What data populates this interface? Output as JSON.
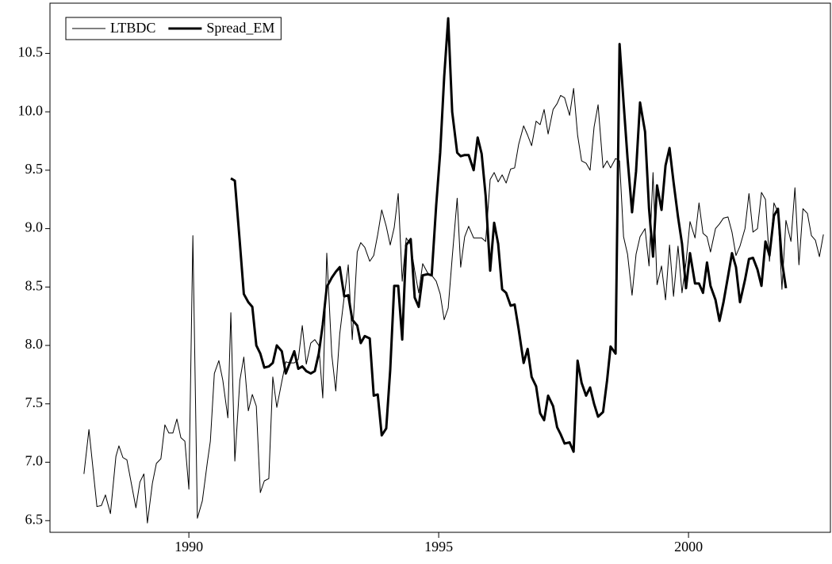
{
  "chart_data": {
    "type": "line",
    "x": [
      1987.9,
      1988.0,
      1988.16,
      1988.25,
      1988.33,
      1988.43,
      1988.54,
      1988.6,
      1988.68,
      1988.76,
      1988.94,
      1989.02,
      1989.1,
      1989.17,
      1989.27,
      1989.35,
      1989.44,
      1989.52,
      1989.6,
      1989.68,
      1989.76,
      1989.84,
      1989.92,
      1990.0,
      1990.08,
      1990.17,
      1990.27,
      1990.37,
      1990.43,
      1990.51,
      1990.6,
      1990.68,
      1990.78,
      1990.84,
      1990.92,
      1991.02,
      1991.1,
      1991.19,
      1991.27,
      1991.35,
      1991.43,
      1991.51,
      1991.6,
      1991.68,
      1991.76,
      1991.86,
      1991.94,
      1992.02,
      1992.11,
      1992.19,
      1992.27,
      1992.35,
      1992.44,
      1992.52,
      1992.6,
      1992.68,
      1992.76,
      1992.86,
      1992.94,
      1993.02,
      1993.11,
      1993.19,
      1993.27,
      1993.37,
      1993.44,
      1993.52,
      1993.62,
      1993.7,
      1993.78,
      1993.86,
      1993.95,
      1994.03,
      1994.11,
      1994.19,
      1994.27,
      1994.35,
      1994.44,
      1994.52,
      1994.6,
      1994.68,
      1994.78,
      1994.86,
      1994.95,
      1995.03,
      1995.11,
      1995.19,
      1995.27,
      1995.37,
      1995.44,
      1995.52,
      1995.6,
      1995.7,
      1995.78,
      1995.86,
      1995.94,
      1996.03,
      1996.11,
      1996.19,
      1996.27,
      1996.35,
      1996.44,
      1996.52,
      1996.6,
      1996.7,
      1996.78,
      1996.86,
      1996.95,
      1997.03,
      1997.11,
      1997.19,
      1997.29,
      1997.37,
      1997.44,
      1997.52,
      1997.62,
      1997.7,
      1997.78,
      1997.86,
      1997.95,
      1998.03,
      1998.11,
      1998.19,
      1998.29,
      1998.37,
      1998.44,
      1998.54,
      1998.62,
      1998.7,
      1998.78,
      1998.87,
      1998.95,
      1999.03,
      1999.13,
      1999.21,
      1999.29,
      1999.37,
      1999.46,
      1999.54,
      1999.62,
      1999.7,
      1999.79,
      1999.87,
      1999.95,
      2000.03,
      2000.13,
      2000.21,
      2000.29,
      2000.37,
      2000.44,
      2000.54,
      2000.62,
      2000.7,
      2000.79,
      2000.87,
      2000.95,
      2001.03,
      2001.13,
      2001.21,
      2001.29,
      2001.38,
      2001.46,
      2001.54,
      2001.62,
      2001.71,
      2001.79,
      2001.87,
      2001.95,
      2002.05,
      2002.13,
      2002.21,
      2002.29,
      2002.38,
      2002.46,
      2002.54,
      2002.62,
      2002.7
    ],
    "series": [
      {
        "name": "LTBDC",
        "color": "#000000",
        "width": 1,
        "values": [
          6.9,
          7.28,
          6.62,
          6.63,
          6.72,
          6.56,
          7.05,
          7.14,
          7.04,
          7.02,
          6.61,
          6.83,
          6.9,
          6.48,
          6.82,
          6.99,
          7.03,
          7.32,
          7.25,
          7.25,
          7.37,
          7.21,
          7.18,
          6.77,
          8.94,
          6.52,
          6.67,
          7.0,
          7.18,
          7.76,
          7.87,
          7.7,
          7.38,
          8.28,
          7.01,
          7.7,
          7.9,
          7.44,
          7.58,
          7.48,
          6.74,
          6.84,
          6.86,
          7.73,
          7.47,
          7.69,
          7.86,
          7.85,
          7.85,
          7.88,
          8.17,
          7.84,
          8.02,
          8.05,
          8.0,
          7.55,
          8.79,
          7.92,
          7.61,
          8.1,
          8.42,
          8.69,
          8.05,
          8.8,
          8.88,
          8.84,
          8.72,
          8.77,
          8.95,
          9.16,
          9.02,
          8.86,
          9.01,
          9.3,
          8.55,
          8.92,
          8.86,
          8.64,
          8.45,
          8.7,
          8.62,
          8.6,
          8.55,
          8.44,
          8.22,
          8.32,
          8.75,
          9.26,
          8.67,
          8.93,
          9.02,
          8.92,
          8.92,
          8.92,
          8.89,
          9.42,
          9.48,
          9.4,
          9.46,
          9.39,
          9.51,
          9.52,
          9.72,
          9.88,
          9.8,
          9.71,
          9.92,
          9.89,
          10.02,
          9.81,
          10.02,
          10.07,
          10.14,
          10.12,
          9.97,
          10.2,
          9.8,
          9.58,
          9.56,
          9.5,
          9.87,
          10.06,
          9.52,
          9.58,
          9.52,
          9.6,
          9.58,
          8.93,
          8.78,
          8.43,
          8.78,
          8.93,
          9.0,
          8.68,
          9.48,
          8.52,
          8.68,
          8.39,
          8.86,
          8.42,
          8.85,
          8.45,
          8.71,
          9.06,
          8.92,
          9.22,
          8.96,
          8.93,
          8.8,
          9.0,
          9.04,
          9.09,
          9.1,
          8.97,
          8.77,
          8.85,
          9.0,
          9.3,
          8.97,
          9.0,
          9.31,
          9.25,
          8.72,
          9.22,
          9.14,
          8.48,
          9.07,
          8.89,
          9.35,
          8.69,
          9.17,
          9.13,
          8.94,
          8.9,
          8.76,
          8.95
        ]
      },
      {
        "name": "Spread_EM",
        "color": "#000000",
        "width": 3,
        "values": [
          null,
          null,
          null,
          null,
          null,
          null,
          null,
          null,
          null,
          null,
          null,
          null,
          null,
          null,
          null,
          null,
          null,
          null,
          null,
          null,
          null,
          null,
          null,
          null,
          null,
          null,
          null,
          null,
          null,
          null,
          null,
          null,
          null,
          9.43,
          9.41,
          8.88,
          8.44,
          8.37,
          8.33,
          8.0,
          7.93,
          7.81,
          7.82,
          7.85,
          8.0,
          7.95,
          7.76,
          7.85,
          7.95,
          7.8,
          7.82,
          7.78,
          7.76,
          7.78,
          7.93,
          8.18,
          8.5,
          8.58,
          8.63,
          8.67,
          8.42,
          8.43,
          8.22,
          8.17,
          8.02,
          8.08,
          8.06,
          7.57,
          7.58,
          7.23,
          7.29,
          7.79,
          8.51,
          8.51,
          8.05,
          8.86,
          8.91,
          8.41,
          8.33,
          8.6,
          8.61,
          8.6,
          9.2,
          9.65,
          10.3,
          10.8,
          10.0,
          9.65,
          9.62,
          9.63,
          9.63,
          9.5,
          9.78,
          9.64,
          9.28,
          8.64,
          9.05,
          8.87,
          8.48,
          8.45,
          8.34,
          8.35,
          8.14,
          7.85,
          7.97,
          7.73,
          7.65,
          7.42,
          7.36,
          7.57,
          7.48,
          7.3,
          7.24,
          7.16,
          7.17,
          7.09,
          7.87,
          7.68,
          7.57,
          7.64,
          7.5,
          7.39,
          7.43,
          7.7,
          7.99,
          7.93,
          10.58,
          10.08,
          9.6,
          9.14,
          9.49,
          10.08,
          9.83,
          9.17,
          8.76,
          9.37,
          9.16,
          9.54,
          9.69,
          9.4,
          9.1,
          8.87,
          8.49,
          8.79,
          8.53,
          8.53,
          8.45,
          8.71,
          8.51,
          8.39,
          8.21,
          8.37,
          8.59,
          8.79,
          8.67,
          8.37,
          8.56,
          8.74,
          8.75,
          8.65,
          8.51,
          8.89,
          8.77,
          9.11,
          9.17,
          8.72,
          8.49,
          null,
          null,
          null,
          null,
          null,
          null,
          null,
          null,
          null
        ]
      }
    ],
    "xlim": [
      1987.22,
      2002.84
    ],
    "xticks": [
      1990,
      1995,
      2000
    ],
    "ylim": [
      6.4,
      10.93
    ],
    "yticks": [
      6.5,
      {
        "value": 7,
        "label": "7.0"
      },
      7.5,
      {
        "value": 8,
        "label": "8.0"
      },
      8.5,
      {
        "value": 9,
        "label": "9.0"
      },
      9.5,
      {
        "value": 10,
        "label": "10.0"
      },
      10.5
    ],
    "grid": false,
    "legend": "upper left"
  }
}
